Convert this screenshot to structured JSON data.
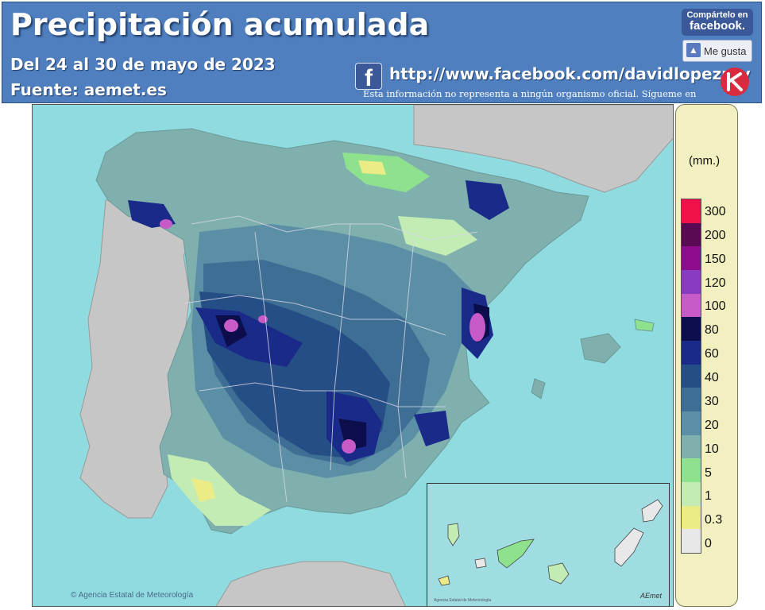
{
  "header": {
    "title": "Precipitación acumulada",
    "date_range": "Del 24 al 30 de mayo de 2023",
    "source": "Fuente:  aemet.es",
    "url": "http://www.facebook.com/davidlopezrey",
    "disclaimer": "Esta información no representa a ningún organismo oficial. Sígueme en",
    "share_top": "Compártelo en",
    "share_brand": "facebook.",
    "like_label": "Me gusta",
    "fb_glyph": "f"
  },
  "map": {
    "region": "Península Ibérica y Baleares",
    "credit": "Agencia Estatal de Meteorología",
    "inset_credit": "Agencia Estatal de Meteorología",
    "inset_logo": "AEmet"
  },
  "legend": {
    "unit": "(mm.)",
    "levels": [
      "300",
      "200",
      "150",
      "120",
      "100",
      "80",
      "60",
      "40",
      "30",
      "20",
      "10",
      "5",
      "1",
      "0.3",
      "0"
    ],
    "colors": [
      "#f0104a",
      "#5a0a52",
      "#8e0c8c",
      "#8a3cc0",
      "#c85ac8",
      "#0b0e4a",
      "#1a2a88",
      "#254e86",
      "#3e6e94",
      "#5b8fa6",
      "#7fb0ae",
      "#8ee28e",
      "#c2ecb4",
      "#ecec86",
      "#e8e8e8"
    ]
  },
  "icons": {
    "facebook": "facebook-icon",
    "like": "thumbs-up-icon",
    "brand": "brand-logo-icon",
    "copyright": "copyright-icon"
  }
}
